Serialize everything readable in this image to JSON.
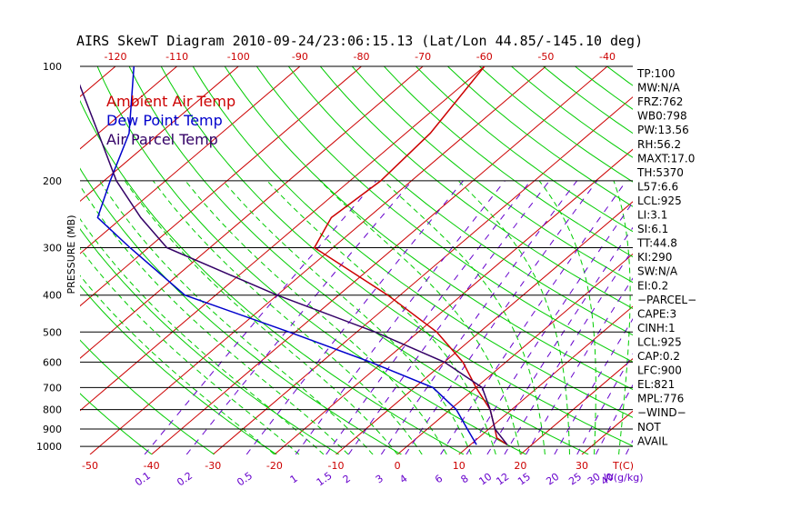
{
  "title": "AIRS SkewT Diagram 2010-09-24/23:06:15.13 (Lat/Lon 44.85/-145.10 deg)",
  "ylabel": "PRESSURE (MB)",
  "colors": {
    "ambient": "#cc0000",
    "dewpoint": "#0000cc",
    "parcel": "#330066",
    "isotherm": "#cc0000",
    "dry_adiabat": "#00cc00",
    "moist_adiabat": "#00cc00",
    "mixing_ratio": "#6600cc",
    "isobar": "#000000"
  },
  "chart_data": {
    "type": "line",
    "title": "AIRS SkewT Diagram 2010-09-24/23:06:15.13 (Lat/Lon 44.85/-145.10 deg)",
    "ylabel": "PRESSURE (MB)",
    "y_scale": "log",
    "ylim": [
      1050,
      100
    ],
    "pressure_ticks": [
      "100",
      "200",
      "300",
      "400",
      "500",
      "600",
      "700",
      "800",
      "900",
      "1000"
    ],
    "top_temp_ticks": [
      "-120",
      "-110",
      "-100",
      "-90",
      "-80",
      "-70",
      "-60",
      "-50",
      "-40"
    ],
    "bottom_temp_ticks": [
      "-50",
      "-40",
      "-30",
      "-20",
      "-10",
      "0",
      "10",
      "20",
      "30"
    ],
    "top_temp_values": [
      -120,
      -110,
      -100,
      -90,
      -80,
      -70,
      -60,
      -50,
      -40
    ],
    "bottom_temp_values": [
      -50,
      -40,
      -30,
      -20,
      -10,
      0,
      10,
      20,
      30
    ],
    "mixing_ratio_ticks": [
      "0.1",
      "0.2",
      "0.5",
      "1",
      "1.5",
      "2",
      "3",
      "4",
      "6",
      "8",
      "10",
      "12",
      "15",
      "20",
      "25",
      "30",
      "40"
    ],
    "mixing_ratio_values": [
      0.1,
      0.2,
      0.5,
      1,
      1.5,
      2,
      3,
      4,
      6,
      8,
      10,
      12,
      15,
      20,
      25,
      30,
      40
    ],
    "t_axis_label": "T(C)",
    "w_axis_label": "W(g/kg)",
    "legend": [
      "Ambient Air Temp",
      "Dew Point Temp",
      "Air Parcel Temp"
    ],
    "legend_placement": "top-left",
    "grid": true,
    "series": [
      {
        "name": "Ambient Air Temp",
        "points": [
          {
            "p": 100,
            "t": -60
          },
          {
            "p": 150,
            "t": -56
          },
          {
            "p": 200,
            "t": -55
          },
          {
            "p": 250,
            "t": -56
          },
          {
            "p": 300,
            "t": -53
          },
          {
            "p": 400,
            "t": -32
          },
          {
            "p": 500,
            "t": -17
          },
          {
            "p": 600,
            "t": -7
          },
          {
            "p": 700,
            "t": 0
          },
          {
            "p": 800,
            "t": 6.5
          },
          {
            "p": 900,
            "t": 11
          },
          {
            "p": 950,
            "t": 13
          },
          {
            "p": 990,
            "t": 16
          }
        ]
      },
      {
        "name": "Dew Point Temp",
        "points": [
          {
            "p": 100,
            "t": -117
          },
          {
            "p": 150,
            "t": -105
          },
          {
            "p": 200,
            "t": -99
          },
          {
            "p": 250,
            "t": -94
          },
          {
            "p": 300,
            "t": -83
          },
          {
            "p": 400,
            "t": -65
          },
          {
            "p": 500,
            "t": -41
          },
          {
            "p": 600,
            "t": -22
          },
          {
            "p": 700,
            "t": -7
          },
          {
            "p": 800,
            "t": 1
          },
          {
            "p": 900,
            "t": 6.5
          },
          {
            "p": 990,
            "t": 11
          }
        ]
      },
      {
        "name": "Air Parcel Temp",
        "points": [
          {
            "p": 100,
            "t": -127
          },
          {
            "p": 150,
            "t": -110
          },
          {
            "p": 200,
            "t": -98
          },
          {
            "p": 250,
            "t": -87
          },
          {
            "p": 300,
            "t": -77
          },
          {
            "p": 400,
            "t": -50
          },
          {
            "p": 500,
            "t": -27
          },
          {
            "p": 600,
            "t": -10
          },
          {
            "p": 700,
            "t": 1
          },
          {
            "p": 800,
            "t": 6.5
          },
          {
            "p": 900,
            "t": 11
          },
          {
            "p": 990,
            "t": 16
          }
        ]
      }
    ]
  },
  "stats": [
    "TP:100",
    "MW:N/A",
    "FRZ:762",
    "WB0:798",
    "PW:13.56",
    "RH:56.2",
    "MAXT:17.0",
    "TH:5370",
    "L57:6.6",
    "LCL:925",
    "LI:3.1",
    "SI:6.1",
    "TT:44.8",
    "KI:290",
    "SW:N/A",
    "EI:0.2",
    "−PARCEL−",
    "CAPE:3",
    "CINH:1",
    "LCL:925",
    "CAP:0.2",
    "LFC:900",
    "EL:821",
    "MPL:776",
    "−WIND−",
    "NOT",
    "AVAIL"
  ]
}
